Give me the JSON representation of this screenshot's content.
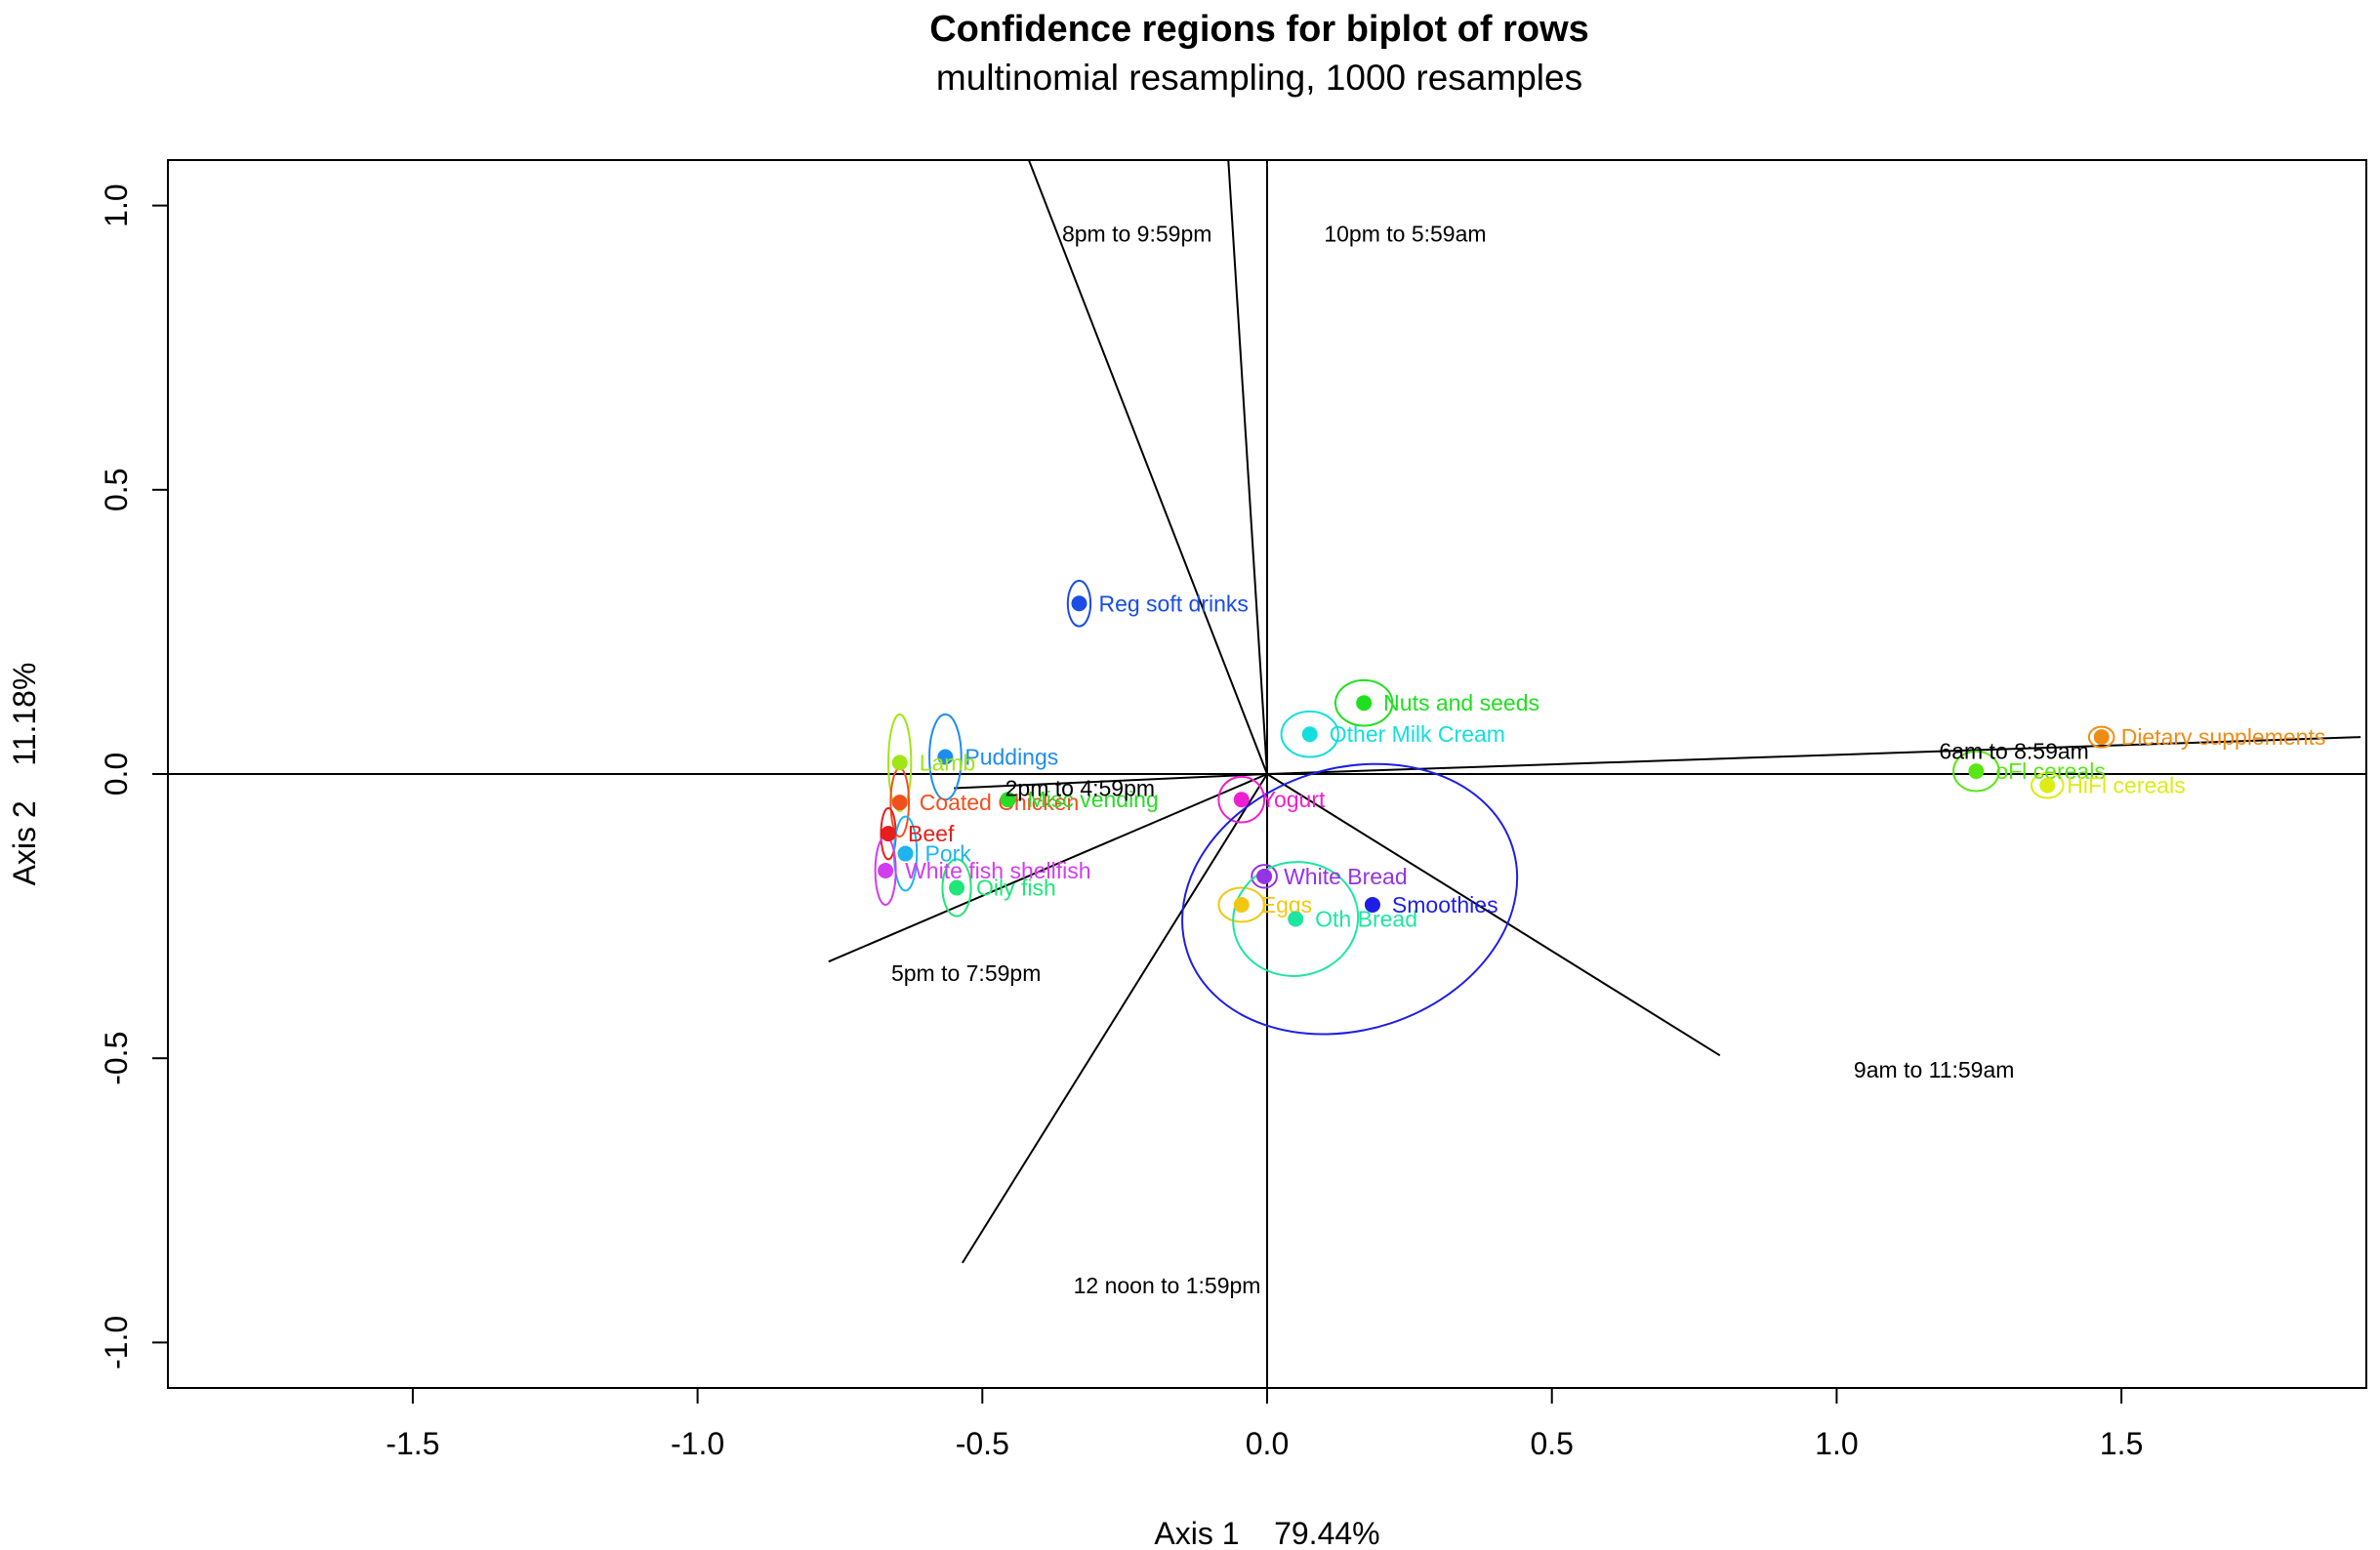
{
  "chart_data": {
    "type": "scatter",
    "title": "Confidence regions for biplot of rows",
    "subtitle": "multinomial resampling,  1000 resamples",
    "xlabel": "Axis 1    79.44%",
    "ylabel": "Axis 2    11.18%",
    "xlim": [
      -1.93,
      1.93
    ],
    "ylim": [
      -1.08,
      1.08
    ],
    "xticks": [
      -1.5,
      -1.0,
      -0.5,
      0.0,
      0.5,
      1.0,
      1.5
    ],
    "xtick_labels": [
      "-1.5",
      "-1.0",
      "-0.5",
      "0.0",
      "0.5",
      "1.0",
      "1.5"
    ],
    "yticks": [
      -1.0,
      -0.5,
      0.0,
      0.5,
      1.0
    ],
    "ytick_labels": [
      "-1.0",
      "-0.5",
      "0.0",
      "0.5",
      "1.0"
    ],
    "grid": false,
    "points": [
      {
        "label": "Reg soft drinks",
        "x": -0.33,
        "y": 0.3,
        "color": "#1a4ce6",
        "ell": {
          "rx": 0.02,
          "ry": 0.04,
          "angle": 0
        }
      },
      {
        "label": "Nuts and seeds",
        "x": 0.17,
        "y": 0.125,
        "color": "#1ee01e",
        "ell": {
          "rx": 0.05,
          "ry": 0.04,
          "angle": 0
        }
      },
      {
        "label": "Other Milk Cream",
        "x": 0.075,
        "y": 0.07,
        "color": "#14dede",
        "ell": {
          "rx": 0.05,
          "ry": 0.04,
          "angle": 0
        }
      },
      {
        "label": "Dietary supplements",
        "x": 1.465,
        "y": 0.065,
        "color": "#f08c14",
        "ell": {
          "rx": 0.022,
          "ry": 0.018,
          "angle": 0
        }
      },
      {
        "label": "oFl cereals",
        "x": 1.245,
        "y": 0.005,
        "color": "#5ae614",
        "ell": {
          "rx": 0.04,
          "ry": 0.035,
          "angle": 0
        }
      },
      {
        "label": "HiFl cereals",
        "x": 1.37,
        "y": -0.02,
        "color": "#dcec14",
        "ell": {
          "rx": 0.028,
          "ry": 0.022,
          "angle": 0
        }
      },
      {
        "label": "Puddings",
        "x": -0.565,
        "y": 0.03,
        "color": "#1e8cf0",
        "ell": {
          "rx": 0.028,
          "ry": 0.075,
          "angle": 0
        }
      },
      {
        "label": "Lamb",
        "x": -0.645,
        "y": 0.02,
        "color": "#a0e614",
        "ell": {
          "rx": 0.02,
          "ry": 0.085,
          "angle": 0
        }
      },
      {
        "label": "Coated Chicken",
        "x": -0.645,
        "y": -0.05,
        "color": "#f0501e",
        "ell": {
          "rx": 0.016,
          "ry": 0.06,
          "angle": 0
        }
      },
      {
        "label": "Misc vending",
        "x": -0.455,
        "y": -0.045,
        "color": "#28dc28",
        "ell": null
      },
      {
        "label": "Beef",
        "x": -0.665,
        "y": -0.105,
        "color": "#e61e1e",
        "ell": {
          "rx": 0.013,
          "ry": 0.045,
          "angle": 0
        }
      },
      {
        "label": "Pork",
        "x": -0.635,
        "y": -0.14,
        "color": "#1eb4f0",
        "ell": {
          "rx": 0.02,
          "ry": 0.065,
          "angle": 0
        }
      },
      {
        "label": "White fish  shellfish",
        "x": -0.67,
        "y": -0.17,
        "color": "#d23cf0",
        "ell": {
          "rx": 0.018,
          "ry": 0.06,
          "angle": 0
        }
      },
      {
        "label": "Oily fish",
        "x": -0.545,
        "y": -0.2,
        "color": "#1ee678",
        "ell": {
          "rx": 0.025,
          "ry": 0.05,
          "angle": 0
        }
      },
      {
        "label": "Yogurt",
        "x": -0.045,
        "y": -0.045,
        "color": "#f01ed2",
        "ell": {
          "rx": 0.04,
          "ry": 0.04,
          "angle": 0
        }
      },
      {
        "label": "White Bread",
        "x": -0.005,
        "y": -0.18,
        "color": "#9632e6",
        "ell": {
          "rx": 0.022,
          "ry": 0.02,
          "angle": 0
        }
      },
      {
        "label": "Eggs",
        "x": -0.045,
        "y": -0.23,
        "color": "#f0c814",
        "ell": {
          "rx": 0.04,
          "ry": 0.03,
          "angle": 0
        }
      },
      {
        "label": "Oth Bread",
        "x": 0.05,
        "y": -0.255,
        "color": "#1ee6a0",
        "ell": {
          "rx": 0.11,
          "ry": 0.1,
          "angle": -10
        }
      },
      {
        "label": "Smoothies",
        "x": 0.185,
        "y": -0.23,
        "color": "#1e1ee6",
        "ell": {
          "rx": 0.3,
          "ry": 0.23,
          "angle": -18,
          "cx": 0.145,
          "cy": -0.22
        }
      }
    ],
    "arrows": [
      {
        "label": "8pm to 9:59pm",
        "x": -0.43,
        "y": 1.11,
        "lx": -0.36,
        "ly": 0.95
      },
      {
        "label": "10pm to 5:59am",
        "x": -0.07,
        "y": 1.11,
        "lx": 0.1,
        "ly": 0.95
      },
      {
        "label": "6am to 8:59am",
        "x": 1.92,
        "y": 0.065,
        "lx": 1.18,
        "ly": 0.04
      },
      {
        "label": "2pm to 4:59pm",
        "x": -0.55,
        "y": -0.025,
        "lx": -0.46,
        "ly": -0.025
      },
      {
        "label": "5pm to 7:59pm",
        "x": -0.77,
        "y": -0.33,
        "lx": -0.66,
        "ly": -0.35
      },
      {
        "label": "12 noon to 1:59pm",
        "x": -0.535,
        "y": -0.86,
        "lx": -0.34,
        "ly": -0.9
      },
      {
        "label": "9am to 11:59am",
        "x": 0.795,
        "y": -0.495,
        "lx": 1.03,
        "ly": -0.52
      }
    ]
  }
}
